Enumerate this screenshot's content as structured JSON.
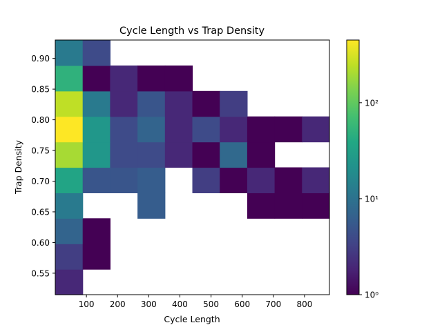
{
  "chart_data": {
    "type": "heatmap",
    "title": "Cycle Length vs Trap Density",
    "xlabel": "Cycle Length",
    "ylabel": "Trap Density",
    "xlim": [
      0,
      880
    ],
    "ylim": [
      0.515,
      0.93
    ],
    "x_ticks": [
      100,
      200,
      300,
      400,
      500,
      600,
      700,
      800
    ],
    "y_ticks": [
      0.55,
      0.6,
      0.65,
      0.7,
      0.75,
      0.8,
      0.85,
      0.9
    ],
    "x_bin_edges": [
      0,
      88,
      176,
      264,
      352,
      440,
      528,
      616,
      704,
      792,
      880
    ],
    "y_bin_edges": [
      0.515,
      0.5565,
      0.598,
      0.6395,
      0.681,
      0.7225,
      0.764,
      0.8055,
      0.847,
      0.8885,
      0.93
    ],
    "colormap": "viridis",
    "color_scale": "log",
    "colorbar": {
      "min": 1,
      "max": 450,
      "ticks": [
        1,
        10,
        100
      ],
      "tick_labels": [
        "10⁰",
        "10¹",
        "10²"
      ]
    },
    "counts": [
      [
        2,
        null,
        null,
        null,
        null,
        null,
        null,
        null,
        null,
        null
      ],
      [
        3,
        1,
        null,
        null,
        null,
        null,
        null,
        null,
        null,
        null
      ],
      [
        7,
        1,
        null,
        null,
        null,
        null,
        null,
        null,
        null,
        null
      ],
      [
        12,
        null,
        null,
        6,
        null,
        null,
        null,
        1,
        1,
        1
      ],
      [
        35,
        5,
        5,
        6,
        null,
        3,
        1,
        2,
        1,
        2
      ],
      [
        200,
        25,
        4,
        4,
        2,
        1,
        8,
        1,
        null,
        null
      ],
      [
        450,
        25,
        4,
        7,
        2,
        4,
        2,
        1,
        1,
        2
      ],
      [
        250,
        12,
        2,
        5,
        2,
        1,
        3,
        null,
        null,
        null
      ],
      [
        50,
        1,
        2,
        1,
        1,
        null,
        null,
        null,
        null,
        null
      ],
      [
        12,
        4,
        null,
        null,
        null,
        null,
        null,
        null,
        null,
        null
      ]
    ]
  }
}
